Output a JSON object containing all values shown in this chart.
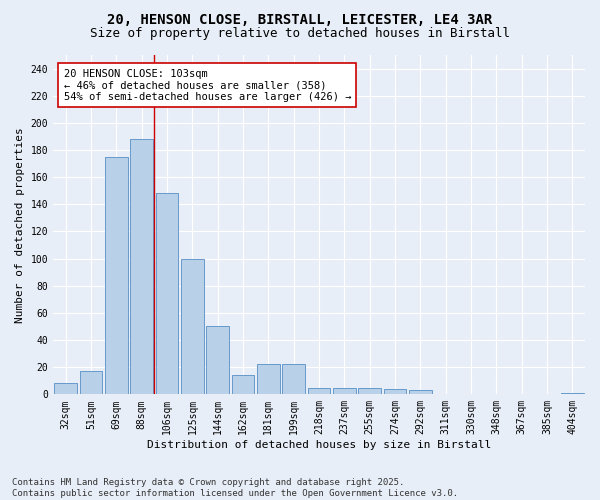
{
  "title_line1": "20, HENSON CLOSE, BIRSTALL, LEICESTER, LE4 3AR",
  "title_line2": "Size of property relative to detached houses in Birstall",
  "xlabel": "Distribution of detached houses by size in Birstall",
  "ylabel": "Number of detached properties",
  "categories": [
    "32sqm",
    "51sqm",
    "69sqm",
    "88sqm",
    "106sqm",
    "125sqm",
    "144sqm",
    "162sqm",
    "181sqm",
    "199sqm",
    "218sqm",
    "237sqm",
    "255sqm",
    "274sqm",
    "292sqm",
    "311sqm",
    "330sqm",
    "348sqm",
    "367sqm",
    "385sqm",
    "404sqm"
  ],
  "values": [
    8,
    17,
    175,
    188,
    148,
    100,
    50,
    14,
    22,
    22,
    5,
    5,
    5,
    4,
    3,
    0,
    0,
    0,
    0,
    0,
    1
  ],
  "bar_color": "#b8d0e8",
  "bar_edge_color": "#6699cc",
  "background_color": "#e8eef7",
  "grid_color": "#ffffff",
  "vline_x_index": 3,
  "vline_color": "#cc0000",
  "annotation_text": "20 HENSON CLOSE: 103sqm\n← 46% of detached houses are smaller (358)\n54% of semi-detached houses are larger (426) →",
  "annotation_box_color": "#ffffff",
  "annotation_box_edge": "#cc0000",
  "ylim": [
    0,
    250
  ],
  "yticks": [
    0,
    20,
    40,
    60,
    80,
    100,
    120,
    140,
    160,
    180,
    200,
    220,
    240
  ],
  "footer": "Contains HM Land Registry data © Crown copyright and database right 2025.\nContains public sector information licensed under the Open Government Licence v3.0.",
  "title_fontsize": 10,
  "subtitle_fontsize": 9,
  "axis_label_fontsize": 8,
  "tick_fontsize": 7,
  "annotation_fontsize": 7.5,
  "footer_fontsize": 6.5
}
